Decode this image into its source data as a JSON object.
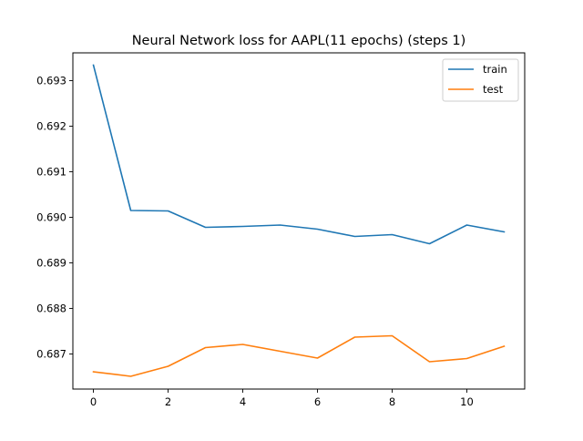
{
  "chart_data": {
    "type": "line",
    "title": "Neural Network loss for AAPL(11 epochs) (steps 1)",
    "xlabel": "",
    "ylabel": "",
    "x": [
      0,
      1,
      2,
      3,
      4,
      5,
      6,
      7,
      8,
      9,
      10,
      11
    ],
    "xlim": [
      -0.55,
      11.55
    ],
    "ylim": [
      0.68623,
      0.69361
    ],
    "xticks": [
      0,
      2,
      4,
      6,
      8,
      10
    ],
    "xtick_labels": [
      "0",
      "2",
      "4",
      "6",
      "8",
      "10"
    ],
    "yticks": [
      0.687,
      0.688,
      0.689,
      0.69,
      0.691,
      0.692,
      0.693
    ],
    "ytick_labels": [
      "0.687",
      "0.688",
      "0.689",
      "0.690",
      "0.691",
      "0.692",
      "0.693"
    ],
    "grid": false,
    "legend_position": "top-right",
    "series": [
      {
        "name": "train",
        "color": "#1f77b4",
        "values": [
          0.69334,
          0.69015,
          0.69014,
          0.68978,
          0.6898,
          0.68983,
          0.68974,
          0.68958,
          0.68962,
          0.68942,
          0.68983,
          0.68968
        ]
      },
      {
        "name": "test",
        "color": "#ff7f0e",
        "values": [
          0.68661,
          0.68651,
          0.68673,
          0.68714,
          0.68721,
          0.68706,
          0.68691,
          0.68737,
          0.6874,
          0.68683,
          0.6869,
          0.68717
        ]
      }
    ]
  }
}
